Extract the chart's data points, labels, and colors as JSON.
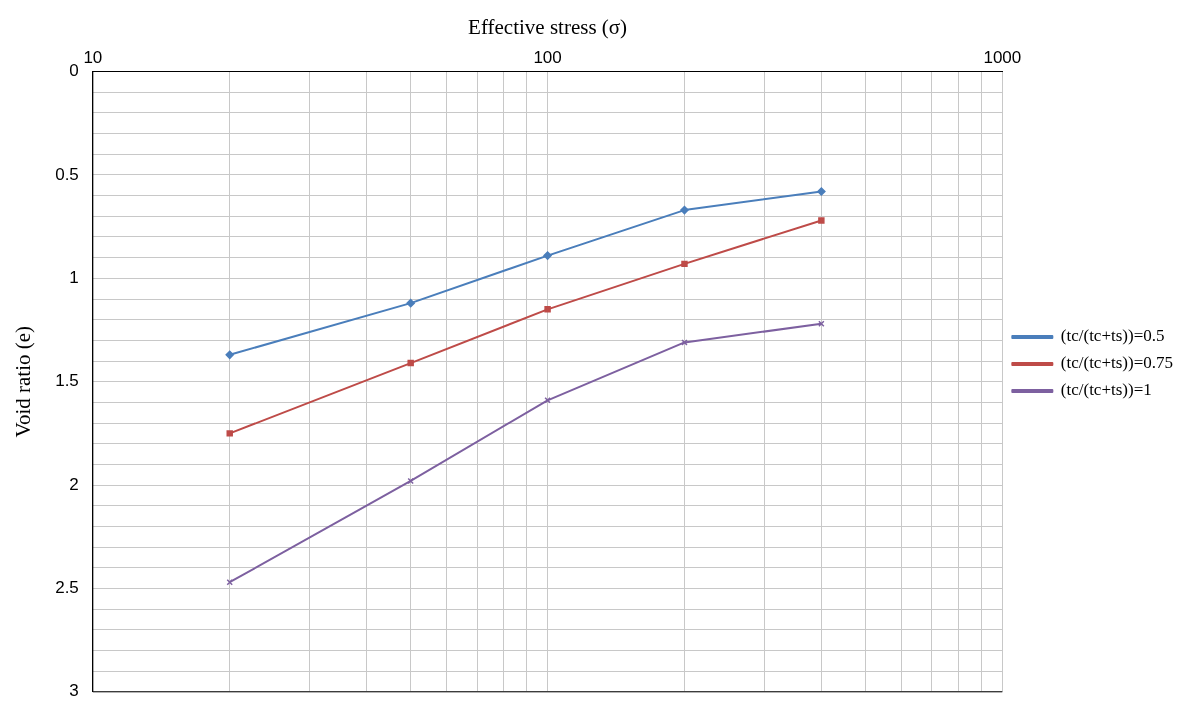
{
  "chart_data": {
    "type": "line",
    "xlabel": "Effective stress (σ)",
    "ylabel": "Void ratio (e)",
    "log": "x",
    "xlim": [
      10,
      1000
    ],
    "xticks": [
      10,
      {
        "value": 20,
        "label": null
      },
      {
        "value": 30,
        "label": null
      },
      {
        "value": 40,
        "label": null
      },
      {
        "value": 50,
        "label": null
      },
      {
        "value": 60,
        "label": null
      },
      {
        "value": 70,
        "label": null
      },
      {
        "value": 80,
        "label": null
      },
      {
        "value": 90,
        "label": null
      },
      100,
      {
        "value": 200,
        "label": null
      },
      {
        "value": 300,
        "label": null
      },
      {
        "value": 400,
        "label": null
      },
      {
        "value": 500,
        "label": null
      },
      {
        "value": 600,
        "label": null
      },
      {
        "value": 700,
        "label": null
      },
      {
        "value": 800,
        "label": null
      },
      {
        "value": 900,
        "label": null
      },
      1000
    ],
    "ylim": [
      3,
      0
    ],
    "yticks": [
      0,
      {
        "value": 0.1,
        "label": null
      },
      {
        "value": 0.2,
        "label": null
      },
      {
        "value": 0.3,
        "label": null
      },
      {
        "value": 0.4,
        "label": null
      },
      0.5,
      {
        "value": 0.6,
        "label": null
      },
      {
        "value": 0.7,
        "label": null
      },
      {
        "value": 0.8,
        "label": null
      },
      {
        "value": 0.9,
        "label": null
      },
      1,
      {
        "value": 1.1,
        "label": null
      },
      {
        "value": 1.2,
        "label": null
      },
      {
        "value": 1.3,
        "label": null
      },
      {
        "value": 1.4,
        "label": null
      },
      1.5,
      {
        "value": 1.6,
        "label": null
      },
      {
        "value": 1.7,
        "label": null
      },
      {
        "value": 1.8,
        "label": null
      },
      {
        "value": 1.9,
        "label": null
      },
      2,
      {
        "value": 2.1,
        "label": null
      },
      {
        "value": 2.2,
        "label": null
      },
      {
        "value": 2.3,
        "label": null
      },
      {
        "value": 2.4,
        "label": null
      },
      2.5,
      {
        "value": 2.6,
        "label": null
      },
      {
        "value": 2.7,
        "label": null
      },
      {
        "value": 2.8,
        "label": null
      },
      {
        "value": 2.9,
        "label": null
      },
      3
    ],
    "grid": true,
    "legend": "right",
    "line_style": "solid",
    "x": [
      20,
      50,
      100,
      200,
      400
    ],
    "series": [
      {
        "name": "(tc/(tc+ts))=0.5",
        "color": "#4a7ebb",
        "marker": "diamond",
        "values": [
          1.37,
          1.12,
          0.89,
          0.67,
          0.58
        ]
      },
      {
        "name": "(tc/(tc+ts))=0.75",
        "color": "#be4b48",
        "marker": "square",
        "values": [
          1.75,
          1.41,
          1.15,
          0.93,
          0.72
        ]
      },
      {
        "name": "(tc/(tc+ts))=1",
        "color": "#7d60a0",
        "marker": "cross",
        "values": [
          2.47,
          1.98,
          1.59,
          1.31,
          1.22
        ]
      }
    ]
  }
}
